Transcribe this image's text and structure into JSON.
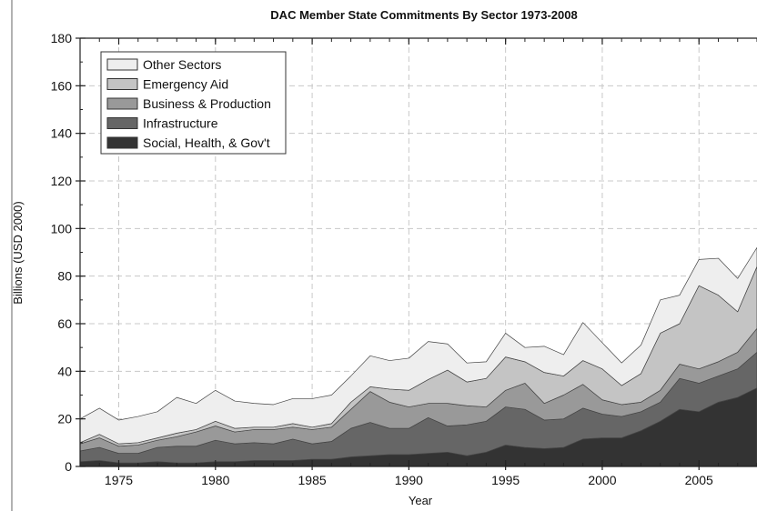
{
  "chart_data": {
    "type": "area",
    "stacked": true,
    "title": "DAC Member State Commitments By Sector 1973-2008",
    "xlabel": "Year",
    "ylabel": "Billions (USD 2000)",
    "xlim": [
      1973,
      2008
    ],
    "ylim": [
      0,
      180
    ],
    "x_ticks": [
      1975,
      1980,
      1985,
      1990,
      1995,
      2000,
      2005
    ],
    "y_ticks": [
      0,
      20,
      40,
      60,
      80,
      100,
      120,
      140,
      160,
      180
    ],
    "grid": true,
    "legend_position": "top-left",
    "x": [
      1973,
      1974,
      1975,
      1976,
      1977,
      1978,
      1979,
      1980,
      1981,
      1982,
      1983,
      1984,
      1985,
      1986,
      1987,
      1988,
      1989,
      1990,
      1991,
      1992,
      1993,
      1994,
      1995,
      1996,
      1997,
      1998,
      1999,
      2000,
      2001,
      2002,
      2003,
      2004,
      2005,
      2006,
      2007,
      2008
    ],
    "series": [
      {
        "name": "Social, Health, & Gov't",
        "color": "#333333",
        "values": [
          2,
          2.5,
          1.5,
          1.5,
          2,
          1.5,
          1.5,
          2,
          2,
          2.5,
          2.5,
          2.5,
          3,
          3,
          4,
          4.5,
          5,
          5,
          5.5,
          6,
          4.5,
          6,
          9,
          8,
          7.5,
          8,
          11.5,
          12,
          12,
          15,
          19,
          24,
          23,
          27,
          29,
          33
        ]
      },
      {
        "name": "Infrastructure",
        "color": "#666666",
        "values": [
          4.5,
          5.5,
          4,
          4,
          6,
          7,
          7,
          9,
          7.5,
          7.5,
          7,
          9,
          6.5,
          7.5,
          12,
          14,
          11,
          11,
          15,
          11,
          13,
          13,
          16,
          16,
          12,
          12,
          13,
          10,
          9,
          8,
          8,
          13,
          12,
          11,
          12,
          15
        ]
      },
      {
        "name": "Business & Production",
        "color": "#999999",
        "values": [
          3,
          4,
          3,
          3.5,
          3,
          4,
          6,
          6,
          5,
          5.5,
          6,
          5,
          6,
          6,
          8,
          13,
          11,
          9,
          6,
          9.5,
          8,
          6,
          7,
          11,
          7,
          10,
          10,
          6,
          5,
          4,
          5,
          6,
          6,
          6,
          7,
          10
        ]
      },
      {
        "name": "Emergency Aid",
        "color": "#c4c4c4",
        "values": [
          0.5,
          1.5,
          1,
          1,
          1,
          1.5,
          1,
          2,
          1.5,
          1,
          1,
          1.5,
          1,
          1.5,
          3,
          2,
          5.5,
          7,
          10,
          14,
          10,
          12,
          14,
          9,
          13,
          8,
          10,
          13,
          8,
          12,
          24,
          17,
          35,
          28,
          17,
          26
        ]
      },
      {
        "name": "Other Sectors",
        "color": "#eeeeee",
        "values": [
          10,
          11,
          10,
          11,
          11,
          15,
          11,
          13,
          11.5,
          10,
          9.5,
          10.5,
          12,
          12,
          11,
          13,
          12,
          13.5,
          16,
          11,
          8,
          7,
          10,
          6,
          11,
          9,
          16,
          11,
          9.5,
          12,
          14,
          12,
          11,
          15.5,
          14,
          8
        ]
      }
    ]
  }
}
